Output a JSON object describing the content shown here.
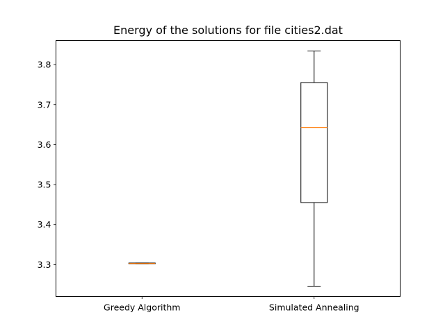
{
  "chart_data": {
    "type": "box",
    "title": "Energy of the solutions for file cities2.dat",
    "xlabel": "",
    "ylabel": "",
    "categories": [
      "Greedy Algorithm",
      "Simulated Annealing"
    ],
    "boxes": [
      {
        "label": "Greedy Algorithm",
        "whisker_low": 3.302,
        "q1": 3.302,
        "median": 3.303,
        "q3": 3.304,
        "whisker_high": 3.304
      },
      {
        "label": "Simulated Annealing",
        "whisker_low": 3.246,
        "q1": 3.455,
        "median": 3.643,
        "q3": 3.755,
        "whisker_high": 3.834
      }
    ],
    "ylim": [
      3.22,
      3.86
    ],
    "yticks": [
      3.3,
      3.4,
      3.5,
      3.6,
      3.7,
      3.8
    ],
    "ytick_labels": [
      "3.3",
      "3.4",
      "3.5",
      "3.6",
      "3.7",
      "3.8"
    ],
    "grid": false,
    "colors": {
      "box": "#000000",
      "median": "#ff7f0e",
      "background": "#ffffff"
    }
  }
}
